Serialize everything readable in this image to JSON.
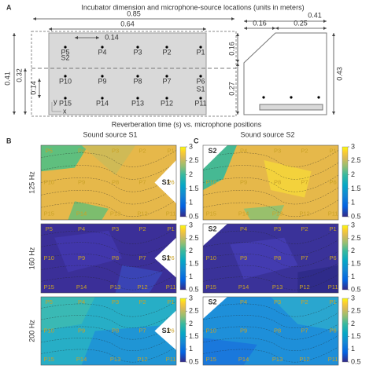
{
  "panel_a": {
    "label": "A",
    "title": "Incubator dimension and microphone-source locations (units in meters)",
    "top_dims": [
      "0.85",
      "0.64",
      "0.14"
    ],
    "left_dims": [
      "0.41",
      "0.32",
      "0.14"
    ],
    "right_dims": [
      "0.41",
      "0.16",
      "0.25",
      "0.16",
      "0.27",
      "0.43"
    ],
    "mics": [
      "P5",
      "P4",
      "P3",
      "P2",
      "P1",
      "P10",
      "P9",
      "P8",
      "P7",
      "P6",
      "P15",
      "P14",
      "P13",
      "P12",
      "P11"
    ],
    "sources": [
      "S1",
      "S2"
    ],
    "axes": [
      "y",
      "x"
    ]
  },
  "title": "Reverberation time (s) vs. microphone positions",
  "panel_b": {
    "label": "B",
    "title": "Sound source S1"
  },
  "panel_c": {
    "label": "C",
    "title": "Sound source S2"
  },
  "rows": [
    "125 Hz",
    "160 Hz",
    "200 Hz"
  ],
  "colorbar": {
    "range": [
      0.5,
      3
    ],
    "ticks": [
      3,
      2.5,
      2,
      1.5,
      1,
      0.5
    ]
  }
}
